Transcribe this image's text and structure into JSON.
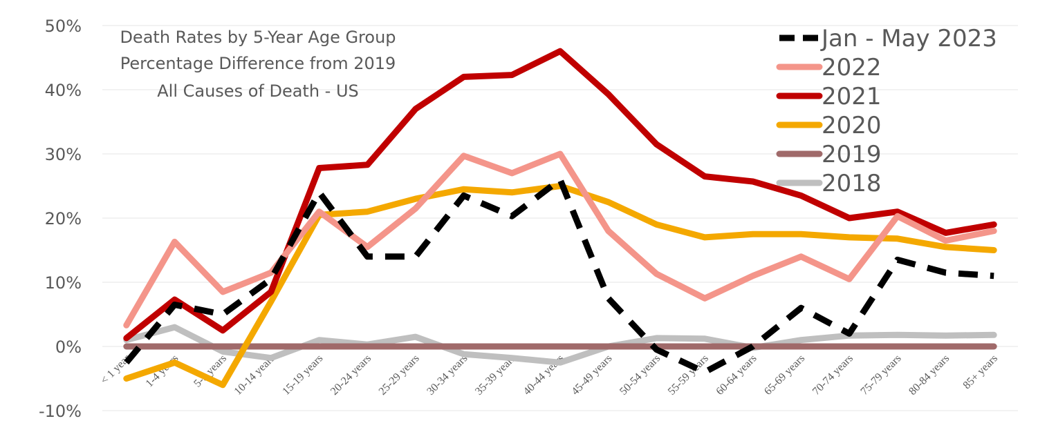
{
  "chart_data": {
    "type": "line",
    "title_lines": [
      "Death Rates by 5-Year Age Group",
      "Percentage Difference from 2019",
      "All Causes of Death - US"
    ],
    "xlabel": "",
    "ylabel": "",
    "ylim": [
      -10,
      50
    ],
    "yticks": [
      -10,
      0,
      10,
      20,
      30,
      40,
      50
    ],
    "ytick_labels": [
      "-10%",
      "0%",
      "10%",
      "20%",
      "30%",
      "40%",
      "50%"
    ],
    "grid": "horizontal",
    "legend_position": "top-right",
    "categories": [
      "< 1 year",
      "1-4 years",
      "5-9 years",
      "10-14 years",
      "15-19 years",
      "20-24 years",
      "25-29 years",
      "30-34 years",
      "35-39 years",
      "40-44 years",
      "45-49 years",
      "50-54 years",
      "55-59 years",
      "60-64 years",
      "65-69 years",
      "70-74 years",
      "75-79 years",
      "80-84 years",
      "85+ years"
    ],
    "series": [
      {
        "name": "2018",
        "color": "#bfbfbf",
        "dash": false,
        "values": [
          1.0,
          3.0,
          -0.8,
          -1.8,
          1.0,
          0.3,
          1.5,
          -1.2,
          -1.8,
          -2.5,
          0.0,
          1.3,
          1.2,
          -0.2,
          1.0,
          1.7,
          1.8,
          1.7,
          1.8
        ]
      },
      {
        "name": "2019",
        "color": "#a06a6a",
        "dash": false,
        "values": [
          0,
          0,
          0,
          0,
          0,
          0,
          0,
          0,
          0,
          0,
          0,
          0,
          0,
          0,
          0,
          0,
          0,
          0,
          0
        ]
      },
      {
        "name": "2020",
        "color": "#f4a800",
        "dash": false,
        "values": [
          -5.0,
          -2.5,
          -6.0,
          7.0,
          20.5,
          21.0,
          23.0,
          24.5,
          24.0,
          25.0,
          22.5,
          19.0,
          17.0,
          17.5,
          17.5,
          17.0,
          16.8,
          15.5,
          15.0
        ]
      },
      {
        "name": "2021",
        "color": "#c00000",
        "dash": false,
        "values": [
          1.3,
          7.3,
          2.5,
          8.5,
          27.8,
          28.3,
          37.0,
          42.0,
          42.3,
          46.0,
          39.3,
          31.5,
          26.5,
          25.7,
          23.5,
          20.0,
          21.0,
          17.7,
          19.0
        ]
      },
      {
        "name": "2022",
        "color": "#f4958a",
        "dash": false,
        "values": [
          3.3,
          16.3,
          8.5,
          11.5,
          21.0,
          15.5,
          21.5,
          29.7,
          27.0,
          30.0,
          18.0,
          11.3,
          7.5,
          11.0,
          14.0,
          10.5,
          20.3,
          16.5,
          18.0
        ]
      },
      {
        "name": "Jan - May 2023",
        "color": "#000000",
        "dash": true,
        "values": [
          -2.5,
          6.5,
          5.0,
          10.5,
          24.0,
          14.0,
          14.0,
          23.5,
          20.3,
          26.0,
          7.5,
          -0.5,
          -4.0,
          0.0,
          6.0,
          2.0,
          13.5,
          11.5,
          11.0
        ]
      }
    ],
    "legend_order": [
      "Jan - May 2023",
      "2022",
      "2021",
      "2020",
      "2019",
      "2018"
    ]
  }
}
